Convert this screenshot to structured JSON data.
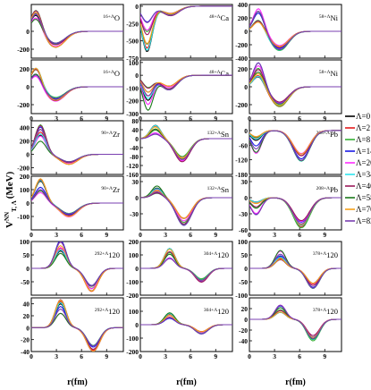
{
  "figure": {
    "ylabel": "V",
    "ylabel_sup": "NN",
    "ylabel_sub": "T, Λ",
    "ylabel_unit": "(MeV)",
    "xlabel": "r(fm)",
    "x_ticks": [
      "0",
      "3",
      "6",
      "9"
    ],
    "x_range": [
      0,
      11
    ]
  },
  "legend": {
    "entries": [
      {
        "label": "Λ=0",
        "color": "#000000"
      },
      {
        "label": "Λ=2",
        "color": "#e41a1c"
      },
      {
        "label": "Λ=8",
        "color": "#33b033"
      },
      {
        "label": "Λ=14",
        "color": "#1a1ae6"
      },
      {
        "label": "Λ=20",
        "color": "#ff2cff"
      },
      {
        "label": "Λ=34",
        "color": "#2fe5ee"
      },
      {
        "label": "Λ=40",
        "color": "#9b1a5c"
      },
      {
        "label": "Λ=58",
        "color": "#1c7a1c"
      },
      {
        "label": "Λ=70",
        "color": "#f5a21b"
      },
      {
        "label": "Λ=82",
        "color": "#7a3fb0"
      }
    ]
  },
  "chart_data": [
    {
      "type": "line",
      "nucleus": {
        "sup": "16+Λ",
        "sym": "O"
      },
      "row": 0,
      "col": 0,
      "ylim": [
        -300,
        300
      ],
      "yticks": [
        0,
        -200
      ],
      "well": {
        "depth": -155,
        "rmin": 2.9,
        "width": 1.6,
        "peak": 200,
        "rpeak": 0.6,
        "spread": 0.25
      }
    },
    {
      "type": "line",
      "nucleus": {
        "sup": "16+Λ",
        "sym": "O"
      },
      "row": 1,
      "col": 0,
      "ylim": [
        -300,
        300
      ],
      "yticks": [
        200,
        0,
        -200
      ],
      "well": {
        "depth": -140,
        "rmin": 2.9,
        "width": 1.6,
        "peak": 180,
        "rpeak": 0.6,
        "spread": 0.25
      }
    },
    {
      "type": "line",
      "nucleus": {
        "sup": "48+Λ",
        "sym": "Ca"
      },
      "row": 0,
      "col": 1,
      "ylim": [
        -750,
        25
      ],
      "yticks": [
        0,
        -250,
        -500,
        -750
      ],
      "well": {
        "depth": -120,
        "rmin": 3.6,
        "width": 1.4,
        "peak": -450,
        "rpeak": 0.8,
        "spread": 0.5
      }
    },
    {
      "type": "line",
      "nucleus": {
        "sup": "48+Λ",
        "sym": "Ca"
      },
      "row": 1,
      "col": 1,
      "ylim": [
        -300,
        120
      ],
      "yticks": [
        100,
        0,
        -100,
        -200,
        -300
      ],
      "well": {
        "depth": -100,
        "rmin": 3.4,
        "width": 1.4,
        "peak": -180,
        "rpeak": 0.9,
        "spread": 0.5
      }
    },
    {
      "type": "line",
      "nucleus": {
        "sup": "58+Λ",
        "sym": "Ni"
      },
      "row": 0,
      "col": 2,
      "ylim": [
        -400,
        400
      ],
      "yticks": [
        400,
        200,
        0,
        -200,
        -400
      ],
      "well": {
        "depth": -250,
        "rmin": 3.6,
        "width": 1.5,
        "peak": 250,
        "rpeak": 1.1,
        "spread": 0.4
      }
    },
    {
      "type": "line",
      "nucleus": {
        "sup": "58+Λ",
        "sym": "Ni"
      },
      "row": 1,
      "col": 2,
      "ylim": [
        -300,
        300
      ],
      "yticks": [
        200,
        0,
        -200
      ],
      "well": {
        "depth": -200,
        "rmin": 3.6,
        "width": 1.5,
        "peak": 200,
        "rpeak": 1.1,
        "spread": 0.4
      }
    },
    {
      "type": "line",
      "nucleus": {
        "sup": "90+Λ",
        "sym": "Zr"
      },
      "row": 2,
      "col": 0,
      "ylim": [
        -300,
        500
      ],
      "yticks": [
        400,
        200,
        0,
        -200
      ],
      "well": {
        "depth": -130,
        "rmin": 4.5,
        "width": 1.5,
        "peak": 320,
        "rpeak": 1.1,
        "spread": 0.4
      }
    },
    {
      "type": "line",
      "nucleus": {
        "sup": "90+Λ",
        "sym": "Zr"
      },
      "row": 3,
      "col": 0,
      "ylim": [
        -200,
        200
      ],
      "yticks": [
        200,
        100,
        0,
        -100
      ],
      "well": {
        "depth": -90,
        "rmin": 4.5,
        "width": 1.5,
        "peak": 130,
        "rpeak": 1.1,
        "spread": 0.4
      }
    },
    {
      "type": "line",
      "nucleus": {
        "sup": "132+Λ",
        "sym": "Sn"
      },
      "row": 2,
      "col": 1,
      "ylim": [
        -160,
        80
      ],
      "yticks": [
        80,
        40,
        0,
        -40,
        -80,
        -120,
        -160
      ],
      "well": {
        "depth": -90,
        "rmin": 5.0,
        "width": 1.3,
        "peak": 40,
        "rpeak": 1.8,
        "spread": 0.5
      }
    },
    {
      "type": "line",
      "nucleus": {
        "sup": "132+Λ",
        "sym": "Sn"
      },
      "row": 3,
      "col": 1,
      "ylim": [
        -60,
        40
      ],
      "yticks": [
        30,
        0,
        -30
      ],
      "well": {
        "depth": -45,
        "rmin": 5.2,
        "width": 1.3,
        "peak": 15,
        "rpeak": 2.0,
        "spread": 0.5
      }
    },
    {
      "type": "line",
      "nucleus": {
        "sup": "208+Λ",
        "sym": "Pb"
      },
      "row": 2,
      "col": 2,
      "ylim": [
        -180,
        40
      ],
      "yticks": [
        0,
        -60,
        -120,
        -180
      ],
      "well": {
        "depth": -110,
        "rmin": 6.2,
        "width": 1.4,
        "peak": -60,
        "rpeak": 0.8,
        "spread": 0.6
      }
    },
    {
      "type": "line",
      "nucleus": {
        "sup": "208+Λ",
        "sym": "Pb"
      },
      "row": 3,
      "col": 2,
      "ylim": [
        -60,
        40
      ],
      "yticks": [
        30,
        0,
        -30,
        -60
      ],
      "well": {
        "depth": -50,
        "rmin": 6.2,
        "width": 1.4,
        "peak": -20,
        "rpeak": 0.8,
        "spread": 0.6
      }
    },
    {
      "type": "line",
      "nucleus": {
        "sup": "292+Λ",
        "sym": "120"
      },
      "row": 4,
      "col": 0,
      "ylim": [
        -100,
        100
      ],
      "yticks": [
        100,
        50,
        0,
        -50
      ],
      "well": {
        "depth": -75,
        "rmin": 7.2,
        "width": 1.1,
        "peak": 80,
        "rpeak": 3.5,
        "spread": 0.35
      }
    },
    {
      "type": "line",
      "nucleus": {
        "sup": "292+Λ",
        "sym": "120"
      },
      "row": 5,
      "col": 0,
      "ylim": [
        -40,
        50
      ],
      "yticks": [
        40,
        20,
        0,
        -20,
        -40
      ],
      "well": {
        "depth": -35,
        "rmin": 7.4,
        "width": 1.1,
        "peak": 35,
        "rpeak": 3.5,
        "spread": 0.35
      }
    },
    {
      "type": "line",
      "nucleus": {
        "sup": "304+Λ",
        "sym": "120"
      },
      "row": 4,
      "col": 1,
      "ylim": [
        -200,
        200
      ],
      "yticks": [
        200,
        100,
        0,
        -100,
        -200
      ],
      "well": {
        "depth": -90,
        "rmin": 7.3,
        "width": 1.1,
        "peak": 110,
        "rpeak": 3.5,
        "spread": 0.35
      }
    },
    {
      "type": "line",
      "nucleus": {
        "sup": "304+Λ",
        "sym": "120"
      },
      "row": 5,
      "col": 1,
      "ylim": [
        -200,
        200
      ],
      "yticks": [
        100,
        0,
        -100,
        -200
      ],
      "well": {
        "depth": -60,
        "rmin": 7.3,
        "width": 1.1,
        "peak": 70,
        "rpeak": 3.5,
        "spread": 0.35
      }
    },
    {
      "type": "line",
      "nucleus": {
        "sup": "378+Λ",
        "sym": "120"
      },
      "row": 4,
      "col": 2,
      "ylim": [
        -100,
        100
      ],
      "yticks": [
        100,
        50,
        0,
        -50,
        -100
      ],
      "well": {
        "depth": -65,
        "rmin": 7.6,
        "width": 1.1,
        "peak": 50,
        "rpeak": 3.7,
        "spread": 0.35
      }
    },
    {
      "type": "line",
      "nucleus": {
        "sup": "378+Λ",
        "sym": "120"
      },
      "row": 5,
      "col": 2,
      "ylim": [
        -60,
        40
      ],
      "yticks": [
        20,
        0,
        -20,
        -40
      ],
      "well": {
        "depth": -35,
        "rmin": 7.6,
        "width": 1.1,
        "peak": 20,
        "rpeak": 3.7,
        "spread": 0.35
      }
    }
  ]
}
